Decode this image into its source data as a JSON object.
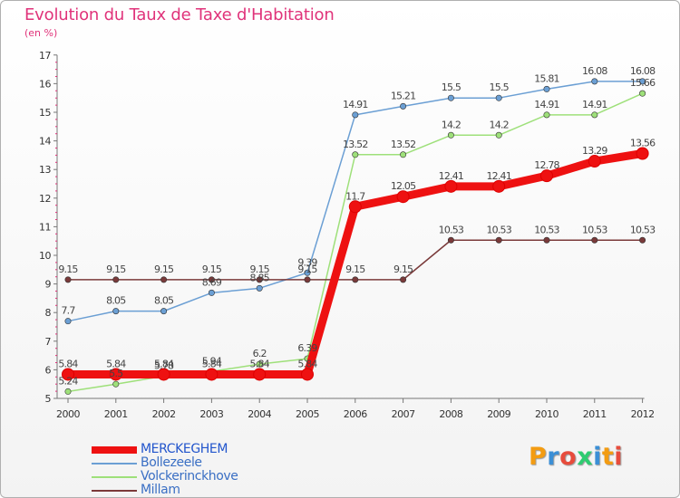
{
  "title": "Evolution du Taux de Taxe d'Habitation",
  "subtitle": "(en %)",
  "logo": {
    "text": "Proxiti",
    "colors": [
      "#f39c12",
      "#3b8fd6",
      "#e74c3c",
      "#2ecc71",
      "#3b8fd6",
      "#f39c12",
      "#e74c3c"
    ]
  },
  "chart_data": {
    "type": "line",
    "x": [
      2000,
      2001,
      2002,
      2003,
      2004,
      2005,
      2006,
      2007,
      2008,
      2009,
      2010,
      2011,
      2012
    ],
    "ylim": [
      5,
      17
    ],
    "yticks": [
      5,
      6,
      7,
      8,
      9,
      10,
      11,
      12,
      13,
      14,
      15,
      16,
      17
    ],
    "grid": false,
    "legend": "bottom-left",
    "series": [
      {
        "name": "MERCKEGHEM",
        "color": "#ee1111",
        "values": [
          5.84,
          5.84,
          5.84,
          5.84,
          5.84,
          5.84,
          11.7,
          12.05,
          12.41,
          12.41,
          12.78,
          13.29,
          13.56
        ],
        "labels": [
          "5.84",
          "5.84",
          "5.84",
          "5.84",
          "5.84",
          "5.84",
          "11.7",
          "12.05",
          "12.41",
          "12.41",
          "12.78",
          "13.29",
          "13.56"
        ]
      },
      {
        "name": "Bollezeele",
        "color": "#6b9fd4",
        "values": [
          7.7,
          8.05,
          8.05,
          8.69,
          8.85,
          9.39,
          14.91,
          15.21,
          15.5,
          15.5,
          15.81,
          16.08,
          16.08
        ],
        "labels": [
          "7.7",
          "8.05",
          "8.05",
          "8.69",
          "8.85",
          "9.39",
          "14.91",
          "15.21",
          "15.5",
          "15.5",
          "15.81",
          "16.08",
          "16.08"
        ]
      },
      {
        "name": "Volckerinckhove",
        "color": "#9ee07a",
        "values": [
          5.24,
          5.5,
          5.78,
          5.94,
          6.2,
          6.39,
          13.52,
          13.52,
          14.2,
          14.2,
          14.91,
          14.91,
          15.66
        ],
        "labels": [
          "5.24",
          "5.5",
          "5.78",
          "5.94",
          "6.2",
          "6.39",
          "13.52",
          "13.52",
          "14.2",
          "14.2",
          "14.91",
          "14.91",
          "15.66"
        ]
      },
      {
        "name": "Millam",
        "color": "#7a3a3a",
        "values": [
          9.15,
          9.15,
          9.15,
          9.15,
          9.15,
          9.15,
          9.15,
          9.15,
          10.53,
          10.53,
          10.53,
          10.53,
          10.53
        ],
        "labels": [
          "9.15",
          "9.15",
          "9.15",
          "9.15",
          "9.15",
          "9.15",
          "9.15",
          "9.15",
          "10.53",
          "10.53",
          "10.53",
          "10.53",
          "10.53"
        ]
      }
    ]
  }
}
